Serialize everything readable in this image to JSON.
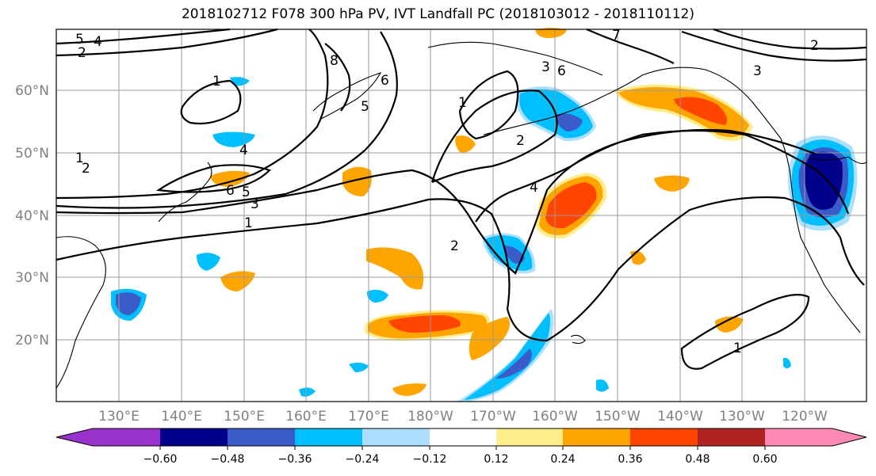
{
  "title": "2018102712 F078 300 hPa PV, IVT Landfall PC (2018103012 - 2018110112)",
  "lat_labels": [
    "60°N",
    "50°N",
    "40°N",
    "30°N",
    "20°N"
  ],
  "lon_labels": [
    "130°E",
    "140°E",
    "150°E",
    "160°E",
    "170°E",
    "180°W",
    "170°W",
    "160°W",
    "150°W",
    "140°W",
    "130°W",
    "120°W"
  ],
  "contour_labels": [
    "1",
    "2",
    "3",
    "4",
    "5",
    "6",
    "7",
    "8"
  ],
  "colorbar": {
    "ticks": [
      "−0.60",
      "−0.48",
      "−0.36",
      "−0.24",
      "−0.12",
      "0.12",
      "0.24",
      "0.36",
      "0.48",
      "0.60"
    ],
    "colors": [
      "#9932CC",
      "#00008B",
      "#3A5BC8",
      "#00BFFF",
      "#ADDFFF",
      "#FFFFFF",
      "#FFEC8B",
      "#FFA500",
      "#FF4500",
      "#B22222",
      "#FF88B4"
    ]
  },
  "shading_colors": {
    "blue_dark": "#00008B",
    "blue_mid": "#3A5BC8",
    "blue": "#00BFFF",
    "blue_light": "#ADDFFF",
    "yellow": "#FFEC8B",
    "orange": "#FFA500",
    "red_orange": "#FF4500",
    "dark_red": "#B22222"
  }
}
